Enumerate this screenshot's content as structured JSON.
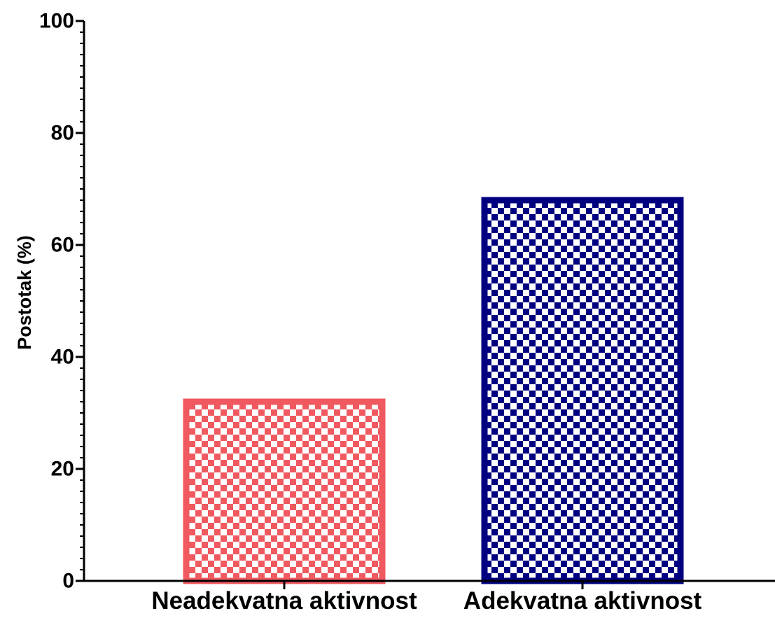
{
  "chart_data": {
    "type": "bar",
    "title": "",
    "xlabel": "",
    "ylabel": "Postotak (%)",
    "ylim": [
      0,
      100
    ],
    "yticks": [
      0,
      20,
      40,
      60,
      80,
      100
    ],
    "grid": false,
    "categories": [
      "Neadekvatna aktivnost",
      "Adekvatna aktivnost"
    ],
    "values": [
      32,
      68
    ],
    "colors": [
      "#f0595f",
      "#000080"
    ],
    "fill_pattern": "checkerboard"
  }
}
